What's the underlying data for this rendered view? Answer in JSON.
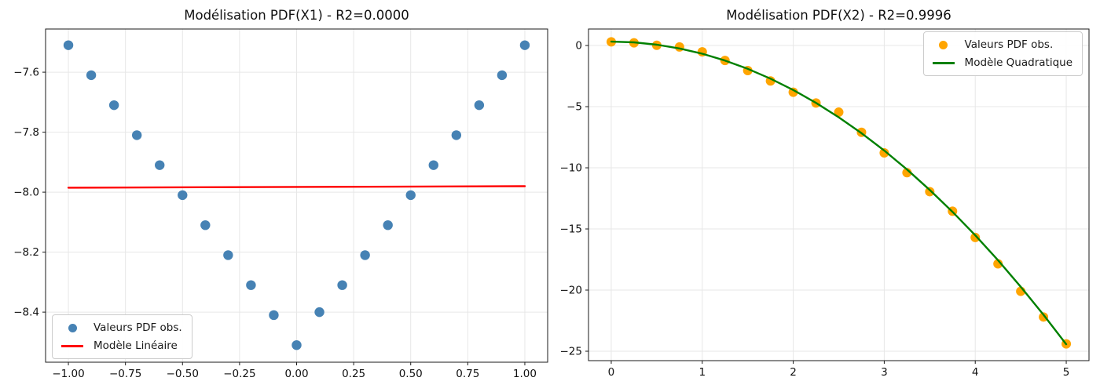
{
  "figure": {
    "background": "#ffffff"
  },
  "chart_data": [
    {
      "type": "scatter",
      "title": "Modélisation PDF(X1) - R2=0.0000",
      "xlabel": "",
      "ylabel": "",
      "xlim": [
        -1.1,
        1.1
      ],
      "ylim": [
        -8.567,
        -7.456
      ],
      "grid": true,
      "legend_position": "lower left",
      "xticks": {
        "values": [
          -1.0,
          -0.75,
          -0.5,
          -0.25,
          0.0,
          0.25,
          0.5,
          0.75,
          1.0
        ],
        "labels": [
          "−1.00",
          "−0.75",
          "−0.50",
          "−0.25",
          "0.00",
          "0.25",
          "0.50",
          "0.75",
          "1.00"
        ]
      },
      "yticks": {
        "values": [
          -7.6,
          -7.8,
          -8.0,
          -8.2,
          -8.4
        ],
        "labels": [
          "−7.6",
          "−7.8",
          "−8.0",
          "−8.2",
          "−8.4"
        ]
      },
      "series": [
        {
          "name": "Valeurs PDF obs.",
          "kind": "scatter",
          "color": "#4682b4",
          "marker_radius": 6.2,
          "x": [
            -1.0,
            -0.9,
            -0.8,
            -0.7,
            -0.6,
            -0.5,
            -0.4,
            -0.3,
            -0.2,
            -0.1,
            0.0,
            0.1,
            0.2,
            0.3,
            0.4,
            0.5,
            0.6,
            0.7,
            0.8,
            0.9,
            1.0
          ],
          "y": [
            -7.51,
            -7.61,
            -7.71,
            -7.81,
            -7.91,
            -8.01,
            -8.11,
            -8.21,
            -8.31,
            -8.41,
            -8.51,
            -8.4,
            -8.31,
            -8.21,
            -8.11,
            -8.01,
            -7.91,
            -7.81,
            -7.71,
            -7.61,
            -7.51
          ]
        },
        {
          "name": "Modèle Linéaire",
          "kind": "line",
          "color": "#ff0000",
          "line_width": 2.4,
          "x": [
            -1.0,
            1.0
          ],
          "y": [
            -7.985,
            -7.98
          ]
        }
      ]
    },
    {
      "type": "scatter",
      "title": "Modélisation PDF(X2) - R2=0.9996",
      "xlabel": "",
      "ylabel": "",
      "xlim": [
        -0.25,
        5.25
      ],
      "ylim": [
        -25.77,
        1.35
      ],
      "grid": true,
      "legend_position": "upper right",
      "xticks": {
        "values": [
          0,
          1,
          2,
          3,
          4,
          5
        ],
        "labels": [
          "0",
          "1",
          "2",
          "3",
          "4",
          "5"
        ]
      },
      "yticks": {
        "values": [
          0,
          -5,
          -10,
          -15,
          -20,
          -25
        ],
        "labels": [
          "0",
          "−5",
          "−10",
          "−15",
          "−20",
          "−25"
        ]
      },
      "series": [
        {
          "name": "Valeurs PDF obs.",
          "kind": "scatter",
          "color": "#ffa500",
          "marker_radius": 6,
          "x": [
            0.0,
            0.25,
            0.5,
            0.75,
            1.0,
            1.25,
            1.5,
            1.75,
            2.0,
            2.25,
            2.5,
            2.75,
            3.0,
            3.25,
            3.5,
            3.75,
            4.0,
            4.25,
            4.5,
            4.75,
            5.0
          ],
          "y": [
            0.3,
            0.22,
            0.02,
            -0.12,
            -0.52,
            -1.22,
            -2.05,
            -2.9,
            -3.82,
            -4.7,
            -5.45,
            -7.1,
            -8.78,
            -10.4,
            -11.95,
            -13.55,
            -15.7,
            -17.85,
            -20.1,
            -22.2,
            -24.4
          ]
        },
        {
          "name": "Modèle Quadratique",
          "kind": "line",
          "color": "#008000",
          "line_width": 2.4,
          "x": [
            0.0,
            0.25,
            0.5,
            0.75,
            1.0,
            1.25,
            1.5,
            1.75,
            2.0,
            2.25,
            2.5,
            2.75,
            3.0,
            3.25,
            3.5,
            3.75,
            4.0,
            4.25,
            4.5,
            4.75,
            5.0
          ],
          "y": [
            0.32,
            0.26,
            0.07,
            -0.24,
            -0.67,
            -1.23,
            -1.91,
            -2.71,
            -3.64,
            -4.69,
            -5.87,
            -7.17,
            -8.59,
            -10.14,
            -11.81,
            -13.6,
            -15.52,
            -17.56,
            -19.73,
            -22.02,
            -24.43
          ]
        }
      ]
    }
  ],
  "style": {
    "grid_color": "#e7e7e7",
    "spine_color": "#1a1a1a",
    "tick_label_color": "#111111"
  }
}
